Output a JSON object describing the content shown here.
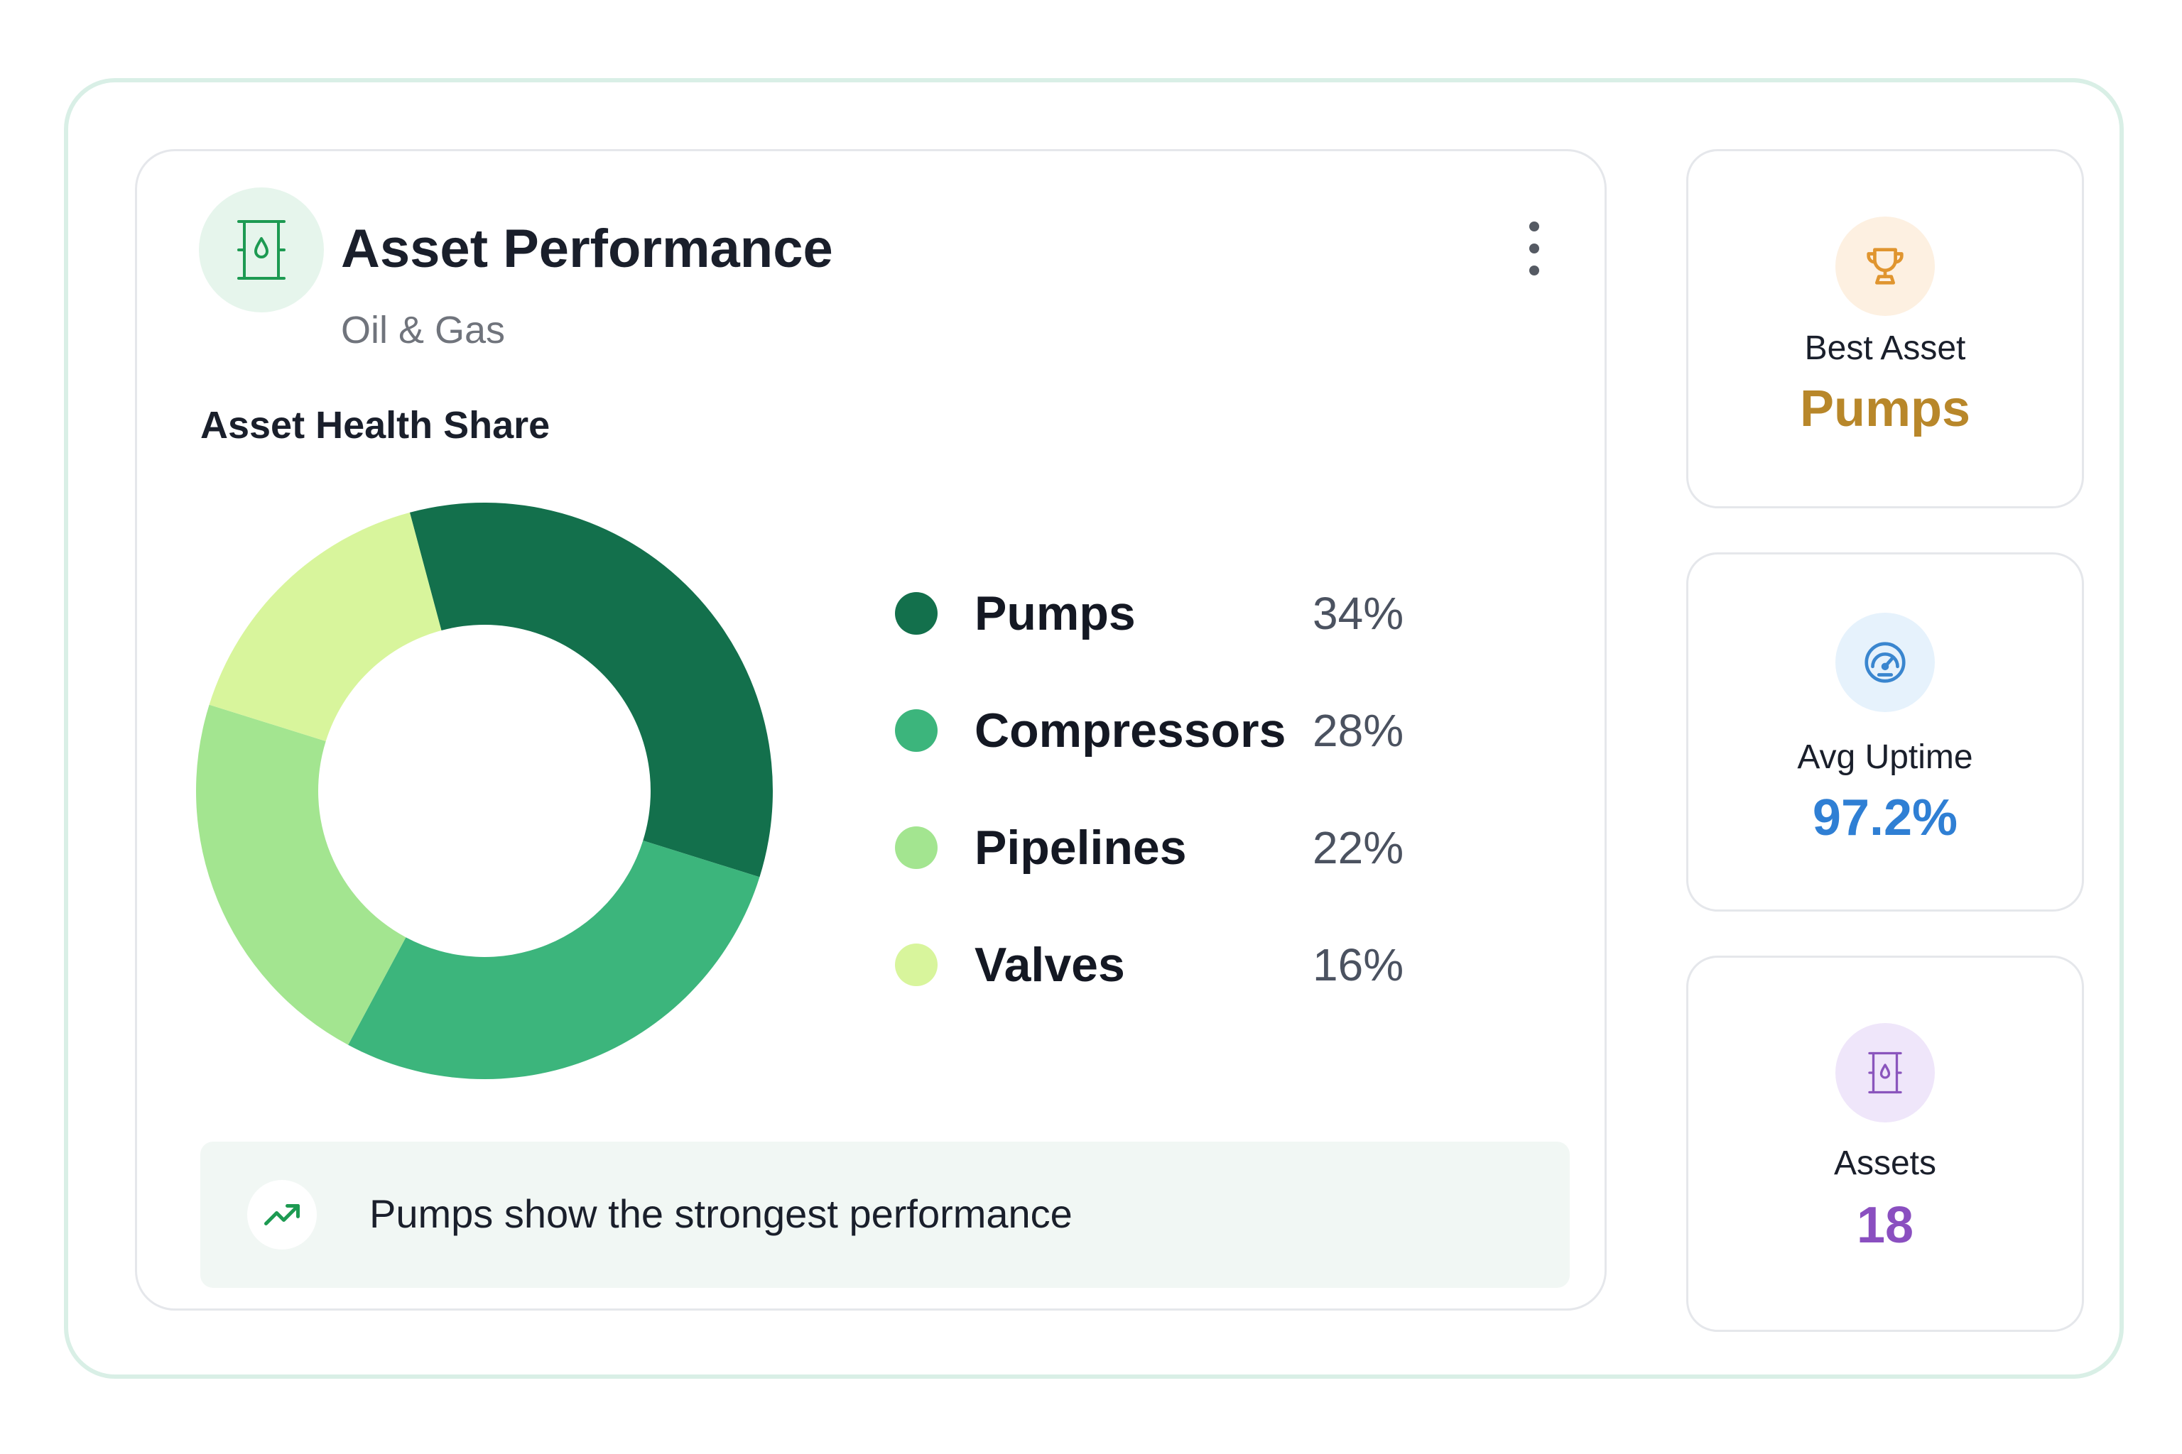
{
  "header": {
    "title": "Asset Performance",
    "subtitle": "Oil & Gas",
    "icon": "oil-barrel-icon",
    "menu_icon": "kebab-menu-icon"
  },
  "chart_data": {
    "type": "pie",
    "variant": "donut",
    "title": "Asset Health Share",
    "categories": [
      "Pumps",
      "Compressors",
      "Pipelines",
      "Valves"
    ],
    "values": [
      34,
      28,
      22,
      16
    ],
    "value_labels": [
      "34%",
      "28%",
      "22%",
      "16%"
    ],
    "unit": "%",
    "colors": [
      "#13704c",
      "#3cb57c",
      "#a3e590",
      "#d8f59c"
    ],
    "legend_position": "right"
  },
  "insight": {
    "icon": "trending-up-icon",
    "text": "Pumps show the strongest performance"
  },
  "stats": [
    {
      "label": "Best Asset",
      "value": "Pumps",
      "icon": "trophy-icon",
      "color": "#b8872a",
      "icon_bg": "#fdf0e1",
      "icon_color": "#e0952f"
    },
    {
      "label": "Avg Uptime",
      "value": "97.2%",
      "icon": "gauge-icon",
      "color": "#2f7fd4",
      "icon_bg": "#e6f2fc",
      "icon_color": "#3a86cf"
    },
    {
      "label": "Assets",
      "value": "18",
      "icon": "oil-barrel-icon",
      "color": "#8a4fc0",
      "icon_bg": "#efe6fa",
      "icon_color": "#8a55bd"
    }
  ]
}
